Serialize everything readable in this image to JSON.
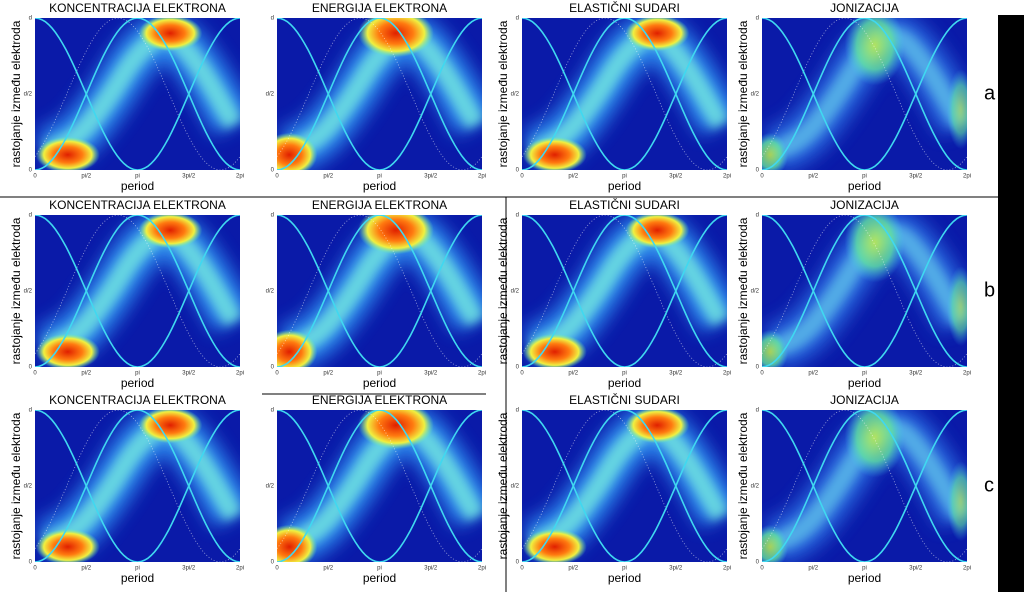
{
  "axes": {
    "xticks": [
      "0",
      "pi/2",
      "pi",
      "3pi/2",
      "2pi"
    ],
    "yticks": [
      "0",
      "d/2",
      "d"
    ]
  },
  "rows": [
    {
      "label": "a",
      "panels": [
        {
          "title": "KONCENTRACIJA ELEKTRONA",
          "y_label": "rastojanje između elektroda",
          "x_label": "period"
        },
        {
          "title": "ENERGIJA ELEKTRONA",
          "x_label": "period"
        },
        {
          "title": "ELASTIČNI SUDARI",
          "y_label": "rastojanje između elektroda",
          "x_label": "period"
        },
        {
          "title": "JONIZACIJA",
          "y_label": "rastojanje između elektroda",
          "x_label": "period"
        }
      ]
    },
    {
      "label": "b",
      "panels": [
        {
          "title": "KONCENTRACIJA ELEKTRONA",
          "y_label": "rastojanje između elektroda",
          "x_label": "period"
        },
        {
          "title": "ENERGIJA ELEKTRONA",
          "x_label": "period"
        },
        {
          "title": "ELASTIČNI SUDARI",
          "y_label": "rastojanje između elektroda",
          "x_label": "period"
        },
        {
          "title": "JONIZACIJA",
          "y_label": "rastojanje između elektroda",
          "x_label": "period"
        }
      ]
    },
    {
      "label": "c",
      "panels": [
        {
          "title": "KONCENTRACIJA ELEKTRONA",
          "y_label": "rastojanje između elektroda",
          "x_label": "period"
        },
        {
          "title": "ENERGIJA ELEKTRONA",
          "x_label": "period"
        },
        {
          "title": "ELASTIČNI SUDARI",
          "y_label": "rastojanje između elektroda",
          "x_label": "period"
        },
        {
          "title": "JONIZACIJA",
          "y_label": "rastojanje između elektroda",
          "x_label": "period"
        }
      ]
    }
  ]
}
